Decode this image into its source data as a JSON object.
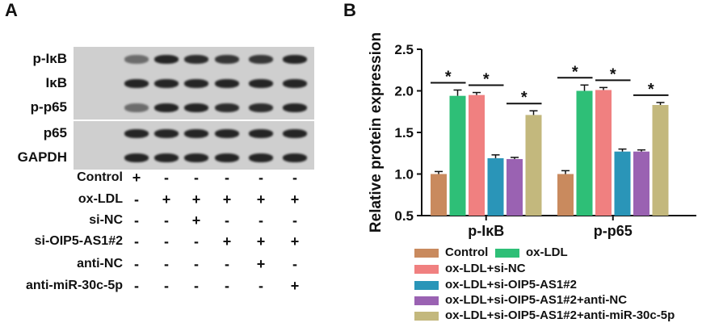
{
  "panel_a": {
    "letter": "A",
    "blots": [
      {
        "label": "p-IκB",
        "intensities": [
          0.55,
          0.95,
          0.9,
          0.85,
          0.85,
          0.95
        ]
      },
      {
        "label": "IκB",
        "intensities": [
          0.95,
          0.95,
          0.95,
          0.95,
          0.95,
          0.95
        ]
      },
      {
        "label": "p-p65",
        "intensities": [
          0.55,
          0.95,
          0.95,
          0.9,
          0.9,
          0.95
        ]
      },
      {
        "label": "p65",
        "intensities": [
          0.95,
          0.95,
          0.95,
          0.95,
          0.95,
          0.95
        ]
      },
      {
        "label": "GAPDH",
        "intensities": [
          0.95,
          0.95,
          0.95,
          0.95,
          0.95,
          0.95
        ]
      }
    ],
    "conditions": [
      {
        "label": "Control",
        "signs": [
          "+",
          "-",
          "-",
          "-",
          "-",
          "-"
        ]
      },
      {
        "label": "ox-LDL",
        "signs": [
          "-",
          "+",
          "+",
          "+",
          "+",
          "+"
        ]
      },
      {
        "label": "si-NC",
        "signs": [
          "-",
          "-",
          "+",
          "-",
          "-",
          "-"
        ]
      },
      {
        "label": "si-OIP5-AS1#2",
        "signs": [
          "-",
          "-",
          "-",
          "+",
          "+",
          "+"
        ]
      },
      {
        "label": "anti-NC",
        "signs": [
          "-",
          "-",
          "-",
          "-",
          "+",
          "-"
        ]
      },
      {
        "label": "anti-miR-30c-5p",
        "signs": [
          "-",
          "-",
          "-",
          "-",
          "-",
          "+"
        ]
      }
    ]
  },
  "panel_b": {
    "letter": "B",
    "significance_marker": "*"
  },
  "chart_data": {
    "type": "bar",
    "title": "",
    "xlabel": "",
    "ylabel": "Relative protein expression",
    "ylim": [
      0.5,
      2.5
    ],
    "yticks": [
      "0.5",
      "1.0",
      "1.5",
      "2.0",
      "2.5"
    ],
    "categories": [
      "p-IκB",
      "p-p65"
    ],
    "series": [
      {
        "name": "Control",
        "color": "#c98a5e",
        "values": [
          1.0,
          1.0
        ],
        "errors": [
          0.03,
          0.04
        ]
      },
      {
        "name": "ox-LDL",
        "color": "#2ebf77",
        "values": [
          1.94,
          2.0
        ],
        "errors": [
          0.07,
          0.07
        ]
      },
      {
        "name": "ox-LDL+si-NC",
        "color": "#f08080",
        "values": [
          1.95,
          2.01
        ],
        "errors": [
          0.03,
          0.03
        ]
      },
      {
        "name": "ox-LDL+si-OIP5-AS1#2",
        "color": "#2a95b8",
        "values": [
          1.19,
          1.27
        ],
        "errors": [
          0.04,
          0.03
        ]
      },
      {
        "name": "ox-LDL+si-OIP5-AS1#2+anti-NC",
        "color": "#9a62b2",
        "values": [
          1.18,
          1.27
        ],
        "errors": [
          0.02,
          0.02
        ]
      },
      {
        "name": "ox-LDL+si-OIP5-AS1#2+anti-miR-30c-5p",
        "color": "#c3b87d",
        "values": [
          1.71,
          1.83
        ],
        "errors": [
          0.05,
          0.03
        ]
      }
    ],
    "significance": [
      {
        "between": [
          0,
          1
        ]
      },
      {
        "between": [
          2,
          3
        ]
      },
      {
        "between": [
          4,
          5
        ]
      }
    ],
    "legend_placement": "bottom"
  }
}
